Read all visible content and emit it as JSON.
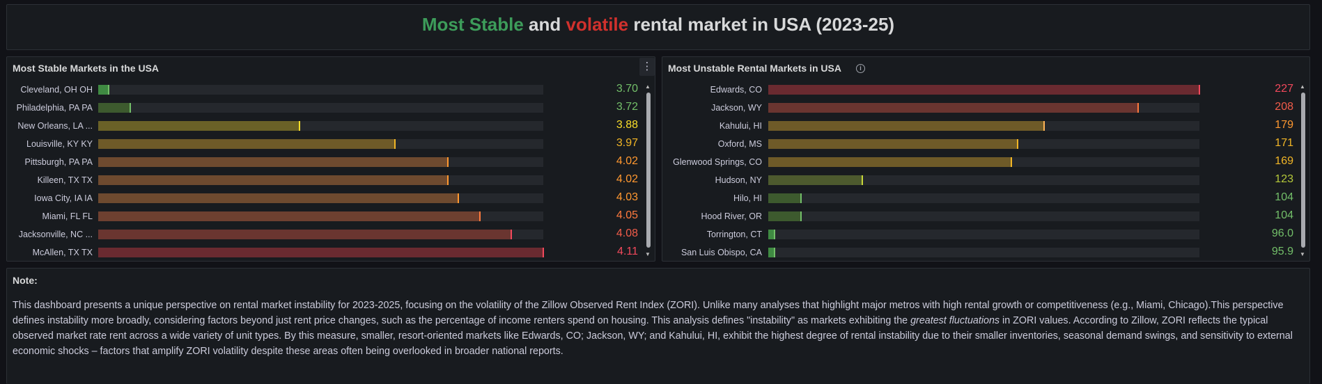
{
  "header": {
    "title_stable": "Most Stable",
    "title_and": "and",
    "title_volatile": "volatile",
    "title_rest": "rental market in USA (2023-25)"
  },
  "stable_panel": {
    "title": "Most Stable Markets in the USA",
    "menu_icon": "more-vertical-icon",
    "max": 4.11,
    "rows": [
      {
        "label": "Cleveland, OH OH",
        "value": 3.7,
        "display": "3.70",
        "fill": "#3f8a42",
        "cap": "#73bf69",
        "text": "#73bf69"
      },
      {
        "label": "Philadelphia, PA PA",
        "value": 3.72,
        "display": "3.72",
        "fill": "#3d5a2e",
        "cap": "#73bf69",
        "text": "#73bf69"
      },
      {
        "label": "New Orleans, LA ...",
        "value": 3.88,
        "display": "3.88",
        "fill": "#6a6127",
        "cap": "#fade2a",
        "text": "#fade2a"
      },
      {
        "label": "Louisville, KY KY",
        "value": 3.97,
        "display": "3.97",
        "fill": "#6e5a28",
        "cap": "#f2b626",
        "text": "#f2b626"
      },
      {
        "label": "Pittsburgh, PA PA",
        "value": 4.02,
        "display": "4.02",
        "fill": "#6e4a2f",
        "cap": "#ff9830",
        "text": "#ff9830"
      },
      {
        "label": "Killeen, TX TX",
        "value": 4.02,
        "display": "4.02",
        "fill": "#6e4a2f",
        "cap": "#ff9830",
        "text": "#ff9830"
      },
      {
        "label": "Iowa City, IA IA",
        "value": 4.03,
        "display": "4.03",
        "fill": "#6e4a2f",
        "cap": "#ff9830",
        "text": "#ff9830"
      },
      {
        "label": "Miami, FL FL",
        "value": 4.05,
        "display": "4.05",
        "fill": "#6e4030",
        "cap": "#ff7a3d",
        "text": "#ff7a3d"
      },
      {
        "label": "Jacksonville, NC ...",
        "value": 4.08,
        "display": "4.08",
        "fill": "#6a3530",
        "cap": "#f2495c",
        "text": "#f25c4a"
      },
      {
        "label": "McAllen, TX TX",
        "value": 4.11,
        "display": "4.11",
        "fill": "#6a2a30",
        "cap": "#f2495c",
        "text": "#f2495c"
      }
    ]
  },
  "unstable_panel": {
    "title": "Most Unstable Rental Markets in USA",
    "info_icon": "info-circle-icon",
    "max": 227,
    "rows": [
      {
        "label": "Edwards, CO",
        "value": 227,
        "display": "227",
        "fill": "#6a2a30",
        "cap": "#f2495c",
        "text": "#f2495c"
      },
      {
        "label": "Jackson, WY",
        "value": 208,
        "display": "208",
        "fill": "#6a3530",
        "cap": "#ff7a3d",
        "text": "#f25c4a"
      },
      {
        "label": "Kahului, HI",
        "value": 179,
        "display": "179",
        "fill": "#6e5a28",
        "cap": "#ffb357",
        "text": "#ff9830"
      },
      {
        "label": "Oxford, MS",
        "value": 171,
        "display": "171",
        "fill": "#6e5a28",
        "cap": "#f2b626",
        "text": "#f2b626"
      },
      {
        "label": "Glenwood Springs, CO",
        "value": 169,
        "display": "169",
        "fill": "#6e5a28",
        "cap": "#f2b626",
        "text": "#f2b626"
      },
      {
        "label": "Hudson, NY",
        "value": 123,
        "display": "123",
        "fill": "#4d5a2e",
        "cap": "#c8d63a",
        "text": "#b5c93a"
      },
      {
        "label": "Hilo, HI",
        "value": 104,
        "display": "104",
        "fill": "#3d5a2e",
        "cap": "#73bf69",
        "text": "#73bf69"
      },
      {
        "label": "Hood River, OR",
        "value": 104,
        "display": "104",
        "fill": "#3d5a2e",
        "cap": "#73bf69",
        "text": "#73bf69"
      },
      {
        "label": "Torrington, CT",
        "value": 96.0,
        "display": "96.0",
        "fill": "#3f8a42",
        "cap": "#73bf69",
        "text": "#73bf69"
      },
      {
        "label": "San Luis Obispo, CA",
        "value": 95.9,
        "display": "95.9",
        "fill": "#3f8a42",
        "cap": "#73bf69",
        "text": "#73bf69"
      }
    ]
  },
  "note": {
    "heading": "Note:",
    "body_part1": "This dashboard presents a unique perspective on rental market instability for 2023-2025, focusing on the volatility of the Zillow Observed Rent Index (ZORI). Unlike many analyses that highlight major metros with high rental growth or competitiveness (e.g., Miami, Chicago).This perspective defines instability more broadly, considering factors beyond just rent price changes, such as the percentage of income renters spend on housing. This analysis defines \"instability\" as markets exhibiting the ",
    "body_emphasis": "greatest fluctuations",
    "body_part2": " in ZORI values. According to Zillow, ZORI reflects the typical observed market rate rent across a wide variety of unit types. By this measure, smaller, resort-oriented markets like Edwards, CO; Jackson, WY; and Kahului, HI, exhibit the highest degree of rental instability due to their smaller inventories, seasonal demand swings, and sensitivity to external economic shocks – factors that amplify ZORI volatility despite these areas often being overlooked in broader national reports."
  }
}
